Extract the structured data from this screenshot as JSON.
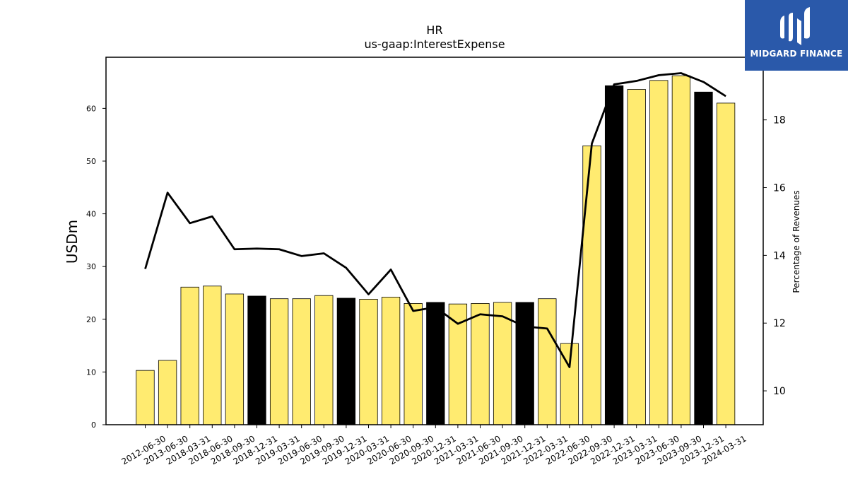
{
  "chart_data": {
    "type": "bar",
    "title": "HR",
    "subtitle": "us-gaap:InterestExpense",
    "ylabel": "USDm",
    "y2label": "Percentage of Revenues",
    "ylim": [
      0,
      69.7
    ],
    "y2lim": [
      9.0,
      19.85
    ],
    "yticks": [
      0,
      10,
      20,
      30,
      40,
      50,
      60
    ],
    "y2ticks": [
      10,
      12,
      14,
      16,
      18
    ],
    "categories": [
      "2012-06-30",
      "2013-06-30",
      "2018-03-31",
      "2018-06-30",
      "2018-09-30",
      "2018-12-31",
      "2019-03-31",
      "2019-06-30",
      "2019-09-30",
      "2019-12-31",
      "2020-03-31",
      "2020-06-30",
      "2020-09-30",
      "2020-12-31",
      "2021-03-31",
      "2021-06-30",
      "2021-09-30",
      "2021-12-31",
      "2022-03-31",
      "2022-06-30",
      "2022-09-30",
      "2022-12-31",
      "2023-03-31",
      "2023-06-30",
      "2023-09-30",
      "2023-12-31",
      "2024-03-31"
    ],
    "series": [
      {
        "type": "bar",
        "values": [
          10.3,
          12.2,
          26.1,
          26.3,
          24.8,
          24.4,
          23.9,
          23.9,
          24.5,
          24.0,
          23.8,
          24.2,
          23.0,
          23.2,
          22.9,
          23.0,
          23.2,
          23.2,
          23.9,
          15.4,
          52.9,
          64.3,
          63.6,
          65.3,
          66.2,
          63.1,
          61.0
        ],
        "highlight": [
          false,
          false,
          false,
          false,
          false,
          true,
          false,
          false,
          false,
          true,
          false,
          false,
          false,
          true,
          false,
          false,
          false,
          true,
          false,
          false,
          false,
          true,
          false,
          false,
          false,
          true,
          false
        ],
        "color": "#ffeb70",
        "highlight_color": "#000000"
      },
      {
        "type": "line",
        "axis": "right",
        "values": [
          13.6,
          15.85,
          14.95,
          15.15,
          14.18,
          14.2,
          14.18,
          13.98,
          14.06,
          13.63,
          12.85,
          13.58,
          12.36,
          12.47,
          11.98,
          12.26,
          12.2,
          11.9,
          11.84,
          10.7,
          17.3,
          19.05,
          19.15,
          19.32,
          19.38,
          19.12,
          18.7
        ],
        "color": "#000000"
      }
    ]
  },
  "logo": {
    "text": "MIDGARD FINANCE",
    "background": "#2a59aa"
  }
}
